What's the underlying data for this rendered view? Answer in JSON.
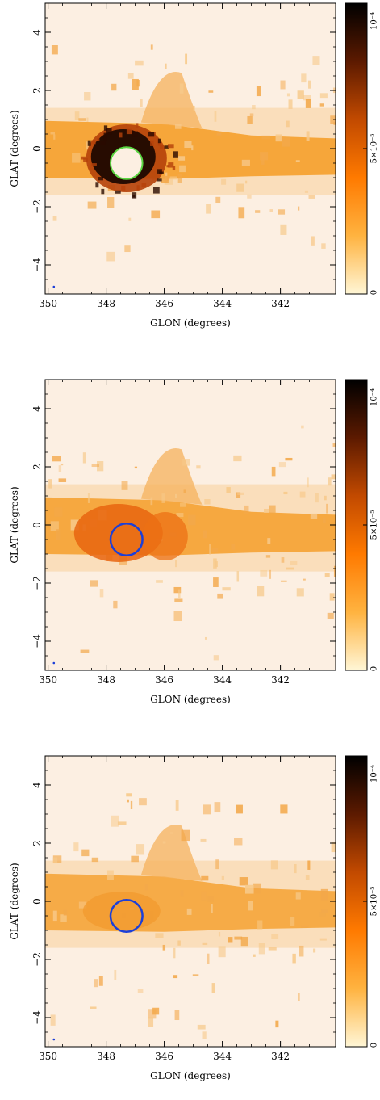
{
  "colors": {
    "map_background": "#fcefe2",
    "plane_emission": "#f5a233",
    "intense_emission": "#e8650f",
    "saturated_emission": "#1a0600",
    "green_circle": "#5bd642",
    "blue_circle": "#1c3fd8",
    "marker": "#1c3fd8"
  },
  "chart_data": [
    {
      "type": "heatmap",
      "xlabel": "GLON (degrees)",
      "ylabel": "GLAT (degrees)",
      "xlim": [
        350.1,
        340.1
      ],
      "ylim": [
        -5,
        5
      ],
      "x_ticks": [
        "350",
        "348",
        "346",
        "344",
        "342"
      ],
      "x_tick_values": [
        350,
        348,
        346,
        344,
        342
      ],
      "y_ticks": [
        "4",
        "2",
        "0",
        "−2",
        "−4"
      ],
      "y_tick_values": [
        4,
        2,
        0,
        -2,
        -4
      ],
      "colorbar": {
        "range": [
          0,
          0.0001
        ],
        "tick_labels": [
          "0",
          "5×10⁻⁵",
          "10⁻⁴"
        ],
        "tick_values": [
          0,
          5e-05,
          0.0001
        ],
        "colormap": [
          "#fff6d6",
          "#ffb340",
          "#ff7a00",
          "#c24a00",
          "#5c1a00",
          "#000000"
        ]
      },
      "emission_level": "high",
      "region_circle": {
        "glon": 347.3,
        "glat": -0.5,
        "radius_deg": 0.55,
        "color": "#5bd642",
        "interior": "empty"
      },
      "marker_point": {
        "glon": 349.8,
        "glat": -4.75
      }
    },
    {
      "type": "heatmap",
      "xlabel": "GLON (degrees)",
      "ylabel": "GLAT (degrees)",
      "xlim": [
        350.1,
        340.1
      ],
      "ylim": [
        -5,
        5
      ],
      "x_ticks": [
        "350",
        "348",
        "346",
        "344",
        "342"
      ],
      "x_tick_values": [
        350,
        348,
        346,
        344,
        342
      ],
      "y_ticks": [
        "4",
        "2",
        "0",
        "−2",
        "−4"
      ],
      "y_tick_values": [
        4,
        2,
        0,
        -2,
        -4
      ],
      "colorbar": {
        "range": [
          0,
          0.0001
        ],
        "tick_labels": [
          "0",
          "5×10⁻⁵",
          "10⁻⁴"
        ],
        "tick_values": [
          0,
          5e-05,
          0.0001
        ],
        "colormap": [
          "#fff6d6",
          "#ffb340",
          "#ff7a00",
          "#c24a00",
          "#5c1a00",
          "#000000"
        ]
      },
      "emission_level": "medium",
      "region_circle": {
        "glon": 347.3,
        "glat": -0.5,
        "radius_deg": 0.55,
        "color": "#1c3fd8",
        "interior": "filled"
      },
      "marker_point": {
        "glon": 349.8,
        "glat": -4.75
      }
    },
    {
      "type": "heatmap",
      "xlabel": "GLON (degrees)",
      "ylabel": "GLAT (degrees)",
      "xlim": [
        350.1,
        340.1
      ],
      "ylim": [
        -5,
        5
      ],
      "x_ticks": [
        "350",
        "348",
        "346",
        "344",
        "342"
      ],
      "x_tick_values": [
        350,
        348,
        346,
        344,
        342
      ],
      "y_ticks": [
        "4",
        "2",
        "0",
        "−2",
        "−4"
      ],
      "y_tick_values": [
        4,
        2,
        0,
        -2,
        -4
      ],
      "colorbar": {
        "range": [
          0,
          0.0001
        ],
        "tick_labels": [
          "0",
          "5×10⁻⁵",
          "10⁻⁴"
        ],
        "tick_values": [
          0,
          5e-05,
          0.0001
        ],
        "colormap": [
          "#fff6d6",
          "#ffb340",
          "#ff7a00",
          "#c24a00",
          "#5c1a00",
          "#000000"
        ]
      },
      "emission_level": "low",
      "region_circle": {
        "glon": 347.3,
        "glat": -0.5,
        "radius_deg": 0.55,
        "color": "#1c3fd8",
        "interior": "filled"
      },
      "marker_point": {
        "glon": 349.8,
        "glat": -4.75
      }
    }
  ]
}
